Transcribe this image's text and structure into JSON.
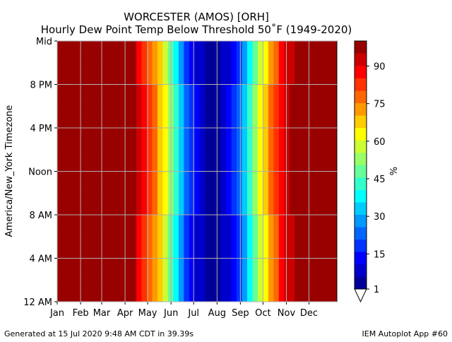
{
  "chart_data": {
    "type": "heatmap",
    "title": "WORCESTER (AMOS) [ORH]",
    "subtitle": "Hourly Dew Point Temp Below Threshold 50˚F (1949-2020)",
    "ylabel": "America/New_York Timezone",
    "colorbar_label": "%",
    "footer_left": "Generated at 15 Jul 2020 9:48 AM CDT in 39.39s",
    "footer_right": "IEM Autoplot App #60",
    "colormap": "jet",
    "grid": true,
    "xlim": [
      0,
      53
    ],
    "xticks": [
      {
        "value": 0,
        "label": "Jan"
      },
      {
        "value": 4.43,
        "label": "Feb"
      },
      {
        "value": 8.43,
        "label": "Mar"
      },
      {
        "value": 12.86,
        "label": "Apr"
      },
      {
        "value": 17.14,
        "label": "May"
      },
      {
        "value": 21.57,
        "label": "Jun"
      },
      {
        "value": 25.86,
        "label": "Jul"
      },
      {
        "value": 30.29,
        "label": "Aug"
      },
      {
        "value": 34.71,
        "label": "Sep"
      },
      {
        "value": 39,
        "label": "Oct"
      },
      {
        "value": 43.43,
        "label": "Nov"
      },
      {
        "value": 47.71,
        "label": "Dec"
      }
    ],
    "ylim": [
      0,
      24
    ],
    "yticks": [
      {
        "value": 0,
        "label": "12 AM"
      },
      {
        "value": 4,
        "label": "4 AM"
      },
      {
        "value": 8,
        "label": "8 AM"
      },
      {
        "value": 12,
        "label": "Noon"
      },
      {
        "value": 16,
        "label": "4 PM"
      },
      {
        "value": 20,
        "label": "8 PM"
      },
      {
        "value": 24,
        "label": "Mid"
      }
    ],
    "clim": [
      1,
      100
    ],
    "cticks": [
      1,
      15,
      30,
      45,
      60,
      75,
      90
    ],
    "z": [
      [
        100,
        100,
        100,
        100,
        100,
        100,
        100,
        100,
        100,
        100,
        100,
        100,
        100,
        100,
        96,
        90,
        85,
        78,
        72,
        66,
        58,
        48,
        38,
        28,
        20,
        14,
        9,
        6,
        5,
        4,
        5,
        7,
        10,
        14,
        20,
        28,
        38,
        48,
        57,
        65,
        72,
        80,
        86,
        91,
        94,
        96,
        98,
        99,
        100,
        100,
        100,
        100,
        100
      ],
      [
        100,
        100,
        100,
        100,
        100,
        100,
        100,
        100,
        100,
        100,
        100,
        100,
        100,
        100,
        96,
        90,
        85,
        78,
        72,
        66,
        58,
        48,
        38,
        28,
        20,
        14,
        9,
        6,
        5,
        4,
        5,
        7,
        10,
        14,
        20,
        28,
        38,
        48,
        57,
        65,
        72,
        80,
        86,
        91,
        94,
        96,
        98,
        99,
        100,
        100,
        100,
        100,
        100
      ],
      [
        100,
        100,
        100,
        100,
        100,
        100,
        100,
        100,
        100,
        100,
        100,
        100,
        100,
        100,
        96,
        90,
        85,
        78,
        72,
        66,
        58,
        48,
        38,
        28,
        20,
        14,
        9,
        6,
        5,
        4,
        5,
        7,
        10,
        14,
        20,
        28,
        38,
        48,
        57,
        65,
        72,
        80,
        86,
        91,
        94,
        96,
        98,
        99,
        100,
        100,
        100,
        100,
        100
      ],
      [
        100,
        100,
        100,
        100,
        100,
        100,
        100,
        100,
        100,
        100,
        100,
        100,
        100,
        100,
        96,
        90,
        85,
        78,
        72,
        66,
        58,
        48,
        38,
        28,
        20,
        14,
        9,
        6,
        5,
        4,
        5,
        7,
        10,
        14,
        20,
        28,
        38,
        48,
        57,
        65,
        72,
        80,
        86,
        91,
        94,
        96,
        98,
        99,
        100,
        100,
        100,
        100,
        100
      ],
      [
        100,
        100,
        100,
        100,
        100,
        100,
        100,
        100,
        100,
        100,
        100,
        100,
        100,
        100,
        96,
        90,
        85,
        78,
        72,
        66,
        58,
        48,
        38,
        28,
        20,
        14,
        9,
        6,
        5,
        4,
        5,
        7,
        10,
        14,
        20,
        28,
        38,
        48,
        57,
        65,
        72,
        80,
        86,
        91,
        94,
        96,
        98,
        99,
        100,
        100,
        100,
        100,
        100
      ],
      [
        100,
        100,
        100,
        100,
        100,
        100,
        100,
        100,
        100,
        100,
        100,
        100,
        100,
        100,
        96,
        90,
        85,
        78,
        72,
        66,
        58,
        48,
        38,
        28,
        20,
        14,
        9,
        6,
        5,
        4,
        5,
        7,
        10,
        14,
        20,
        28,
        38,
        48,
        57,
        65,
        72,
        80,
        86,
        91,
        94,
        96,
        98,
        99,
        100,
        100,
        100,
        100,
        100
      ],
      [
        100,
        100,
        100,
        100,
        100,
        100,
        100,
        100,
        100,
        100,
        100,
        100,
        100,
        100,
        96,
        90,
        85,
        78,
        72,
        66,
        58,
        48,
        38,
        28,
        20,
        14,
        9,
        6,
        5,
        4,
        5,
        7,
        10,
        14,
        20,
        28,
        38,
        48,
        57,
        65,
        72,
        80,
        86,
        91,
        94,
        96,
        98,
        99,
        100,
        100,
        100,
        100,
        100
      ],
      [
        100,
        100,
        100,
        100,
        100,
        100,
        100,
        100,
        100,
        100,
        100,
        100,
        100,
        100,
        96,
        90,
        85,
        78,
        72,
        66,
        58,
        48,
        38,
        28,
        20,
        14,
        9,
        6,
        5,
        4,
        5,
        7,
        10,
        14,
        20,
        28,
        38,
        48,
        57,
        65,
        72,
        80,
        86,
        91,
        94,
        96,
        98,
        99,
        100,
        100,
        100,
        100,
        100
      ],
      [
        100,
        100,
        100,
        100,
        100,
        100,
        100,
        100,
        100,
        100,
        100,
        100,
        100,
        100,
        98,
        93,
        88,
        82,
        76,
        70,
        62,
        53,
        43,
        33,
        24,
        17,
        11,
        7,
        5,
        4,
        5,
        8,
        12,
        17,
        24,
        33,
        43,
        53,
        62,
        70,
        77,
        84,
        89,
        93,
        96,
        97,
        99,
        100,
        100,
        100,
        100,
        100,
        100
      ],
      [
        100,
        100,
        100,
        100,
        100,
        100,
        100,
        100,
        100,
        100,
        100,
        100,
        100,
        100,
        98,
        93,
        88,
        82,
        76,
        70,
        62,
        53,
        43,
        33,
        24,
        17,
        11,
        7,
        5,
        4,
        5,
        8,
        12,
        17,
        24,
        33,
        43,
        53,
        62,
        70,
        77,
        84,
        89,
        93,
        96,
        97,
        99,
        100,
        100,
        100,
        100,
        100,
        100
      ],
      [
        100,
        100,
        100,
        100,
        100,
        100,
        100,
        100,
        100,
        100,
        100,
        100,
        100,
        100,
        98,
        93,
        88,
        82,
        76,
        70,
        62,
        53,
        43,
        33,
        24,
        17,
        11,
        7,
        5,
        4,
        5,
        8,
        12,
        17,
        24,
        33,
        43,
        53,
        62,
        70,
        77,
        84,
        89,
        93,
        96,
        97,
        99,
        100,
        100,
        100,
        100,
        100,
        100
      ],
      [
        100,
        100,
        100,
        100,
        100,
        100,
        100,
        100,
        100,
        100,
        100,
        100,
        100,
        100,
        98,
        93,
        88,
        82,
        76,
        70,
        62,
        53,
        43,
        33,
        24,
        17,
        11,
        7,
        5,
        4,
        5,
        8,
        12,
        17,
        24,
        33,
        43,
        53,
        62,
        70,
        77,
        84,
        89,
        93,
        96,
        97,
        99,
        100,
        100,
        100,
        100,
        100,
        100
      ],
      [
        100,
        100,
        100,
        100,
        100,
        100,
        100,
        100,
        100,
        100,
        100,
        100,
        100,
        100,
        98,
        93,
        88,
        82,
        76,
        70,
        62,
        53,
        43,
        33,
        24,
        17,
        11,
        7,
        5,
        4,
        5,
        8,
        12,
        17,
        24,
        33,
        43,
        53,
        62,
        70,
        77,
        84,
        89,
        93,
        96,
        97,
        99,
        100,
        100,
        100,
        100,
        100,
        100
      ],
      [
        100,
        100,
        100,
        100,
        100,
        100,
        100,
        100,
        100,
        100,
        100,
        100,
        100,
        100,
        98,
        93,
        88,
        82,
        76,
        70,
        62,
        53,
        43,
        33,
        24,
        17,
        11,
        7,
        5,
        4,
        5,
        8,
        12,
        17,
        24,
        33,
        43,
        53,
        62,
        70,
        77,
        84,
        89,
        93,
        96,
        97,
        99,
        100,
        100,
        100,
        100,
        100,
        100
      ],
      [
        100,
        100,
        100,
        100,
        100,
        100,
        100,
        100,
        100,
        100,
        100,
        100,
        100,
        100,
        98,
        93,
        88,
        82,
        76,
        70,
        62,
        53,
        43,
        33,
        24,
        17,
        11,
        7,
        5,
        4,
        5,
        8,
        12,
        17,
        24,
        33,
        43,
        53,
        62,
        70,
        77,
        84,
        89,
        93,
        96,
        97,
        99,
        100,
        100,
        100,
        100,
        100,
        100
      ],
      [
        100,
        100,
        100,
        100,
        100,
        100,
        100,
        100,
        100,
        100,
        100,
        100,
        100,
        100,
        98,
        93,
        88,
        82,
        76,
        70,
        62,
        53,
        43,
        33,
        24,
        17,
        11,
        7,
        5,
        4,
        5,
        8,
        12,
        17,
        24,
        33,
        43,
        53,
        62,
        70,
        77,
        84,
        89,
        93,
        96,
        97,
        99,
        100,
        100,
        100,
        100,
        100,
        100
      ],
      [
        100,
        100,
        100,
        100,
        100,
        100,
        100,
        100,
        100,
        100,
        100,
        100,
        100,
        100,
        98,
        93,
        88,
        82,
        76,
        70,
        62,
        53,
        43,
        33,
        24,
        17,
        11,
        7,
        5,
        4,
        5,
        8,
        12,
        17,
        24,
        33,
        43,
        53,
        62,
        70,
        77,
        84,
        89,
        93,
        96,
        97,
        99,
        100,
        100,
        100,
        100,
        100,
        100
      ],
      [
        100,
        100,
        100,
        100,
        100,
        100,
        100,
        100,
        100,
        100,
        100,
        100,
        100,
        100,
        98,
        93,
        88,
        82,
        76,
        70,
        62,
        53,
        43,
        33,
        24,
        17,
        11,
        7,
        5,
        4,
        5,
        8,
        12,
        17,
        24,
        33,
        43,
        53,
        62,
        70,
        77,
        84,
        89,
        93,
        96,
        97,
        99,
        100,
        100,
        100,
        100,
        100,
        100
      ],
      [
        100,
        100,
        100,
        100,
        100,
        100,
        100,
        100,
        100,
        100,
        100,
        100,
        100,
        100,
        98,
        93,
        88,
        82,
        76,
        70,
        62,
        53,
        43,
        33,
        24,
        17,
        11,
        7,
        5,
        4,
        5,
        8,
        12,
        17,
        24,
        33,
        43,
        53,
        62,
        70,
        77,
        84,
        89,
        93,
        96,
        97,
        99,
        100,
        100,
        100,
        100,
        100,
        100
      ],
      [
        100,
        100,
        100,
        100,
        100,
        100,
        100,
        100,
        100,
        100,
        100,
        100,
        100,
        100,
        98,
        93,
        88,
        82,
        76,
        70,
        62,
        53,
        43,
        33,
        24,
        17,
        11,
        7,
        5,
        4,
        5,
        8,
        12,
        17,
        24,
        33,
        43,
        53,
        62,
        70,
        77,
        84,
        89,
        93,
        96,
        97,
        99,
        100,
        100,
        100,
        100,
        100,
        100
      ],
      [
        100,
        100,
        100,
        100,
        100,
        100,
        100,
        100,
        100,
        100,
        100,
        100,
        100,
        100,
        96,
        90,
        85,
        78,
        72,
        66,
        58,
        48,
        38,
        28,
        20,
        14,
        9,
        6,
        5,
        4,
        5,
        7,
        10,
        14,
        20,
        28,
        38,
        48,
        57,
        65,
        72,
        80,
        86,
        91,
        94,
        96,
        98,
        99,
        100,
        100,
        100,
        100,
        100
      ],
      [
        100,
        100,
        100,
        100,
        100,
        100,
        100,
        100,
        100,
        100,
        100,
        100,
        100,
        100,
        96,
        90,
        85,
        78,
        72,
        66,
        58,
        48,
        38,
        28,
        20,
        14,
        9,
        6,
        5,
        4,
        5,
        7,
        10,
        14,
        20,
        28,
        38,
        48,
        57,
        65,
        72,
        80,
        86,
        91,
        94,
        96,
        98,
        99,
        100,
        100,
        100,
        100,
        100
      ],
      [
        100,
        100,
        100,
        100,
        100,
        100,
        100,
        100,
        100,
        100,
        100,
        100,
        100,
        100,
        96,
        90,
        85,
        78,
        72,
        66,
        58,
        48,
        38,
        28,
        20,
        14,
        9,
        6,
        5,
        4,
        5,
        7,
        10,
        14,
        20,
        28,
        38,
        48,
        57,
        65,
        72,
        80,
        86,
        91,
        94,
        96,
        98,
        99,
        100,
        100,
        100,
        100,
        100
      ],
      [
        100,
        100,
        100,
        100,
        100,
        100,
        100,
        100,
        100,
        100,
        100,
        100,
        100,
        100,
        96,
        90,
        85,
        78,
        72,
        66,
        58,
        48,
        38,
        28,
        20,
        14,
        9,
        6,
        5,
        4,
        5,
        7,
        10,
        14,
        20,
        28,
        38,
        48,
        57,
        65,
        72,
        80,
        86,
        91,
        94,
        96,
        98,
        99,
        100,
        100,
        100,
        100,
        100
      ]
    ]
  }
}
